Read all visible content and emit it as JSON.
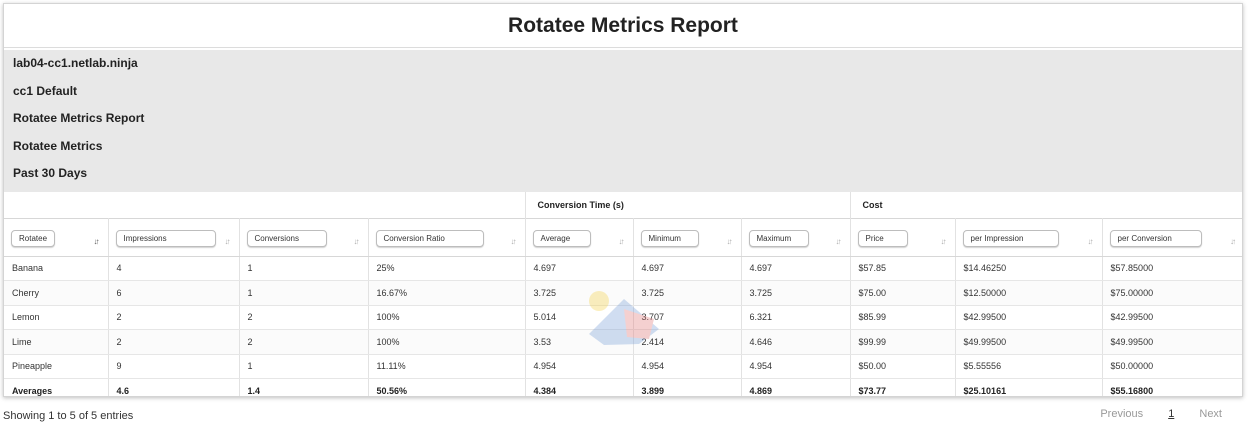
{
  "title": "Rotatee Metrics Report",
  "meta": [
    "lab04-cc1.netlab.ninja",
    "cc1 Default",
    "Rotatee Metrics Report",
    "Rotatee Metrics",
    "Past 30 Days"
  ],
  "groups": {
    "conversion_time": "Conversion Time (s)",
    "cost": "Cost"
  },
  "columns": [
    "Rotatee",
    "Impressions",
    "Conversions",
    "Conversion Ratio",
    "Average",
    "Minimum",
    "Maximum",
    "Price",
    "per Impression",
    "per Conversion"
  ],
  "rows": [
    [
      "Banana",
      "4",
      "1",
      "25%",
      "4.697",
      "4.697",
      "4.697",
      "$57.85",
      "$14.46250",
      "$57.85000"
    ],
    [
      "Cherry",
      "6",
      "1",
      "16.67%",
      "3.725",
      "3.725",
      "3.725",
      "$75.00",
      "$12.50000",
      "$75.00000"
    ],
    [
      "Lemon",
      "2",
      "2",
      "100%",
      "5.014",
      "3.707",
      "6.321",
      "$85.99",
      "$42.99500",
      "$42.99500"
    ],
    [
      "Lime",
      "2",
      "2",
      "100%",
      "3.53",
      "2.414",
      "4.646",
      "$99.99",
      "$49.99500",
      "$49.99500"
    ],
    [
      "Pineapple",
      "9",
      "1",
      "11.11%",
      "4.954",
      "4.954",
      "4.954",
      "$50.00",
      "$5.55556",
      "$50.00000"
    ]
  ],
  "averages": [
    "Averages",
    "4.6",
    "1.4",
    "50.56%",
    "4.384",
    "3.899",
    "4.869",
    "$73.77",
    "$25.10161",
    "$55.16800"
  ],
  "footer": {
    "info": "Showing 1 to 5 of 5 entries",
    "previous": "Previous",
    "page": "1",
    "next": "Next"
  },
  "icons": {
    "sort": "sort-icon",
    "sort_active": "sort-asc-icon",
    "watermark": "watermark-logo"
  }
}
